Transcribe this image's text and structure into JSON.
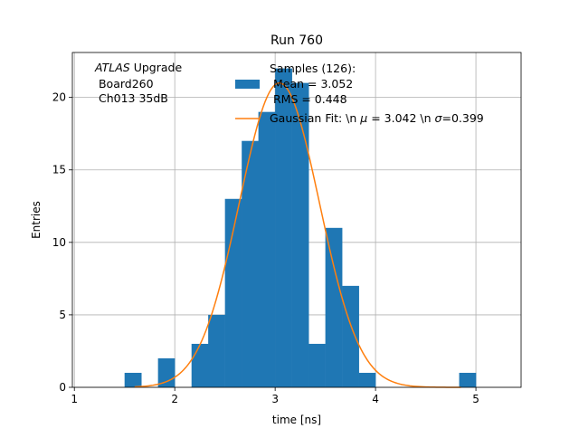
{
  "chart_data": {
    "type": "bar",
    "title": "Run 760",
    "xlabel": "time [ns]",
    "ylabel": "Entries",
    "xlim": [
      0.98,
      5.45
    ],
    "ylim": [
      0,
      23.1
    ],
    "grid": true,
    "xticks": [
      1,
      2,
      3,
      4,
      5
    ],
    "yticks": [
      0,
      5,
      10,
      15,
      20
    ],
    "bin_width": 0.1667,
    "bins": [
      {
        "x0": 1.5,
        "count": 1
      },
      {
        "x0": 1.833,
        "count": 2
      },
      {
        "x0": 2.167,
        "count": 3
      },
      {
        "x0": 2.333,
        "count": 5
      },
      {
        "x0": 2.5,
        "count": 13
      },
      {
        "x0": 2.667,
        "count": 17
      },
      {
        "x0": 2.833,
        "count": 19
      },
      {
        "x0": 3.0,
        "count": 22
      },
      {
        "x0": 3.167,
        "count": 21
      },
      {
        "x0": 3.333,
        "count": 3
      },
      {
        "x0": 3.5,
        "count": 11
      },
      {
        "x0": 3.667,
        "count": 7
      },
      {
        "x0": 3.833,
        "count": 1
      },
      {
        "x0": 4.833,
        "count": 1
      }
    ],
    "fit": {
      "mu": 3.042,
      "sigma": 0.399,
      "amplitude": 21.0,
      "x_start": 1.6,
      "x_end": 4.85
    },
    "colors": {
      "hist": "#1f77b4",
      "fit": "#ff7f0e",
      "grid": "#b0b0b0"
    },
    "annotation": {
      "atlas": "ATLAS",
      "upgrade": " Upgrade",
      "board": " Board260",
      "channel": " Ch013 35dB"
    },
    "legend": {
      "samples_title": "Samples (126):",
      "mean_line": " Mean = 3.052",
      "rms_line": " RMS = 0.448",
      "fit_prefix": "Gaussian Fit: \\n ",
      "mu_symbol": "μ",
      "mu_part": " = 3.042 \\n ",
      "sigma_symbol": "σ",
      "sigma_part": "=0.399"
    }
  }
}
